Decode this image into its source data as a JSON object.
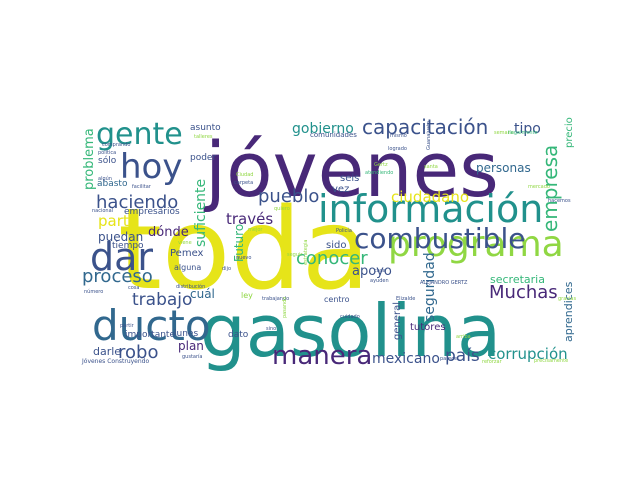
{
  "wordcloud": {
    "colors": {
      "purple": "#482878",
      "indigo": "#3b528b",
      "blue": "#31688e",
      "teal": "#21918c",
      "green": "#35b779",
      "lime": "#90d743",
      "yellow": "#e6e419"
    },
    "words": [
      {
        "text": "toda",
        "color": "#e6e419"
      },
      {
        "text": "jóvenes",
        "color": "#482878"
      },
      {
        "text": "gasolina",
        "color": "#21918c"
      },
      {
        "text": "información",
        "color": "#21918c"
      },
      {
        "text": "ducto",
        "color": "#31688e"
      },
      {
        "text": "programa",
        "color": "#90d743"
      },
      {
        "text": "dar",
        "color": "#3b528b"
      },
      {
        "text": "combustible",
        "color": "#3b528b"
      },
      {
        "text": "hoy",
        "color": "#3b528b"
      },
      {
        "text": "gente",
        "color": "#21918c"
      },
      {
        "text": "manera",
        "color": "#482878"
      },
      {
        "text": "capacitación",
        "color": "#3b528b"
      },
      {
        "text": "empresa",
        "color": "#35b779"
      },
      {
        "text": "haciendo",
        "color": "#3b528b"
      },
      {
        "text": "pueblo",
        "color": "#3b528b"
      },
      {
        "text": "proceso",
        "color": "#31688e"
      },
      {
        "text": "conocer",
        "color": "#35b779"
      },
      {
        "text": "Muchas",
        "color": "#482878"
      },
      {
        "text": "robo",
        "color": "#3b528b"
      },
      {
        "text": "trabajo",
        "color": "#3b528b"
      },
      {
        "text": "ciudadano",
        "color": "#e6e419"
      },
      {
        "text": "parte",
        "color": "#e6e419"
      },
      {
        "text": "través",
        "color": "#482878"
      },
      {
        "text": "país",
        "color": "#3b528b"
      },
      {
        "text": "corrupción",
        "color": "#21918c"
      },
      {
        "text": "mexicano",
        "color": "#3b528b"
      },
      {
        "text": "seguridad",
        "color": "#31688e"
      },
      {
        "text": "suficiente",
        "color": "#35b779"
      },
      {
        "text": "gobierno",
        "color": "#21918c"
      },
      {
        "text": "tipo",
        "color": "#3b528b"
      },
      {
        "text": "problema",
        "color": "#35b779"
      },
      {
        "text": "dónde",
        "color": "#482878"
      },
      {
        "text": "apoyo",
        "color": "#3b528b"
      },
      {
        "text": "puedan",
        "color": "#3b528b"
      },
      {
        "text": "darle",
        "color": "#3b528b"
      },
      {
        "text": "plan",
        "color": "#482878"
      },
      {
        "text": "Futuro",
        "color": "#35b779"
      },
      {
        "text": "cuál",
        "color": "#31688e"
      },
      {
        "text": "personas",
        "color": "#31688e"
      },
      {
        "text": "secretaria",
        "color": "#35b779"
      },
      {
        "text": "aprendices",
        "color": "#31688e"
      },
      {
        "text": "precio",
        "color": "#35b779"
      },
      {
        "text": "general",
        "color": "#3b528b"
      },
      {
        "text": "tutores",
        "color": "#482878"
      },
      {
        "text": "sido",
        "color": "#3b528b"
      },
      {
        "text": "vez",
        "color": "#3b528b"
      },
      {
        "text": "seis",
        "color": "#3b528b"
      },
      {
        "text": "Pemex",
        "color": "#3b528b"
      },
      {
        "text": "tiempo",
        "color": "#3b528b"
      },
      {
        "text": "empresarios",
        "color": "#3b528b"
      },
      {
        "text": "abasto",
        "color": "#31688e"
      },
      {
        "text": "sólo",
        "color": "#3b528b"
      },
      {
        "text": "poder",
        "color": "#3b528b"
      },
      {
        "text": "asunto",
        "color": "#3b528b"
      },
      {
        "text": "lunes",
        "color": "#3b528b"
      },
      {
        "text": "importante",
        "color": "#3b528b"
      },
      {
        "text": "dato",
        "color": "#3b528b"
      },
      {
        "text": "alguna",
        "color": "#3b528b"
      },
      {
        "text": "ley",
        "color": "#90d743"
      },
      {
        "text": "centro",
        "color": "#3b528b"
      },
      {
        "text": "comunidades",
        "color": "#3b528b"
      },
      {
        "text": "Jóvenes Construyendo",
        "color": "#3b528b"
      },
      {
        "text": "ALEJANDRO GERTZ",
        "color": "#3b528b"
      },
      {
        "text": "gustaría",
        "color": "#3b528b"
      },
      {
        "text": "cosa",
        "color": "#3b528b"
      },
      {
        "text": "número",
        "color": "#3b528b"
      },
      {
        "text": "distribución",
        "color": "#3b528b"
      },
      {
        "text": "trabajando",
        "color": "#3b528b"
      },
      {
        "text": "ayuden",
        "color": "#3b528b"
      },
      {
        "text": "hacemos",
        "color": "#3b528b"
      },
      {
        "text": "carpeta",
        "color": "#3b528b"
      },
      {
        "text": "Policía",
        "color": "#3b528b"
      },
      {
        "text": "cuidado",
        "color": "#3b528b"
      },
      {
        "text": "nuevo",
        "color": "#3b528b"
      },
      {
        "text": "dijo",
        "color": "#3b528b"
      },
      {
        "text": "partir",
        "color": "#3b528b"
      },
      {
        "text": "comprando",
        "color": "#3b528b"
      },
      {
        "text": "política",
        "color": "#3b528b"
      },
      {
        "text": "algún",
        "color": "#3b528b"
      },
      {
        "text": "talleres",
        "color": "#90d743"
      },
      {
        "text": "Ciudad",
        "color": "#90d743"
      },
      {
        "text": "atendiendo",
        "color": "#35b779"
      },
      {
        "text": "mismo",
        "color": "#3b528b"
      },
      {
        "text": "Gertz",
        "color": "#90d743"
      },
      {
        "text": "sino",
        "color": "#3b528b"
      },
      {
        "text": "seguir",
        "color": "#90d743"
      },
      {
        "text": "mejor",
        "color": "#90d743"
      },
      {
        "text": "reforzar",
        "color": "#90d743"
      },
      {
        "text": "precisamente",
        "color": "#90d743"
      },
      {
        "text": "parece",
        "color": "#3b528b"
      },
      {
        "text": "estrategia",
        "color": "#90d743"
      },
      {
        "text": "nacional",
        "color": "#3b528b"
      },
      {
        "text": "casa",
        "color": "#3b528b"
      },
      {
        "text": "logrado",
        "color": "#3b528b"
      },
      {
        "text": "Guanajuato",
        "color": "#3b528b"
      },
      {
        "text": "semana",
        "color": "#90d743"
      },
      {
        "text": "ilegalmente",
        "color": "#35b779"
      },
      {
        "text": "mercado",
        "color": "#90d743"
      },
      {
        "text": "viene",
        "color": "#90d743"
      },
      {
        "text": "santa",
        "color": "#90d743"
      },
      {
        "text": "facilitar",
        "color": "#3b528b"
      },
      {
        "text": "Elizalde",
        "color": "#3b528b"
      },
      {
        "text": "pasando",
        "color": "#90d743"
      },
      {
        "text": "gracias",
        "color": "#90d743"
      },
      {
        "text": "arriba",
        "color": "#90d743"
      },
      {
        "text": "quiero",
        "color": "#90d743"
      }
    ]
  }
}
